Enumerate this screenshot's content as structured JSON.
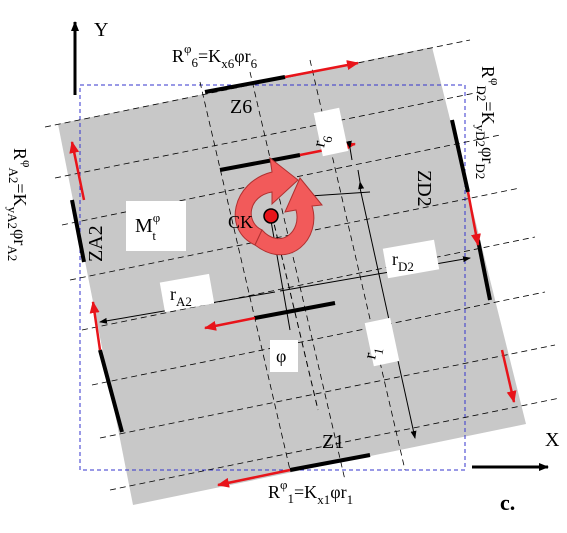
{
  "figure_label": "c.",
  "axes": {
    "x": "X",
    "y": "Y"
  },
  "center_label": "CK",
  "moment": {
    "base": "M",
    "sup": "φ",
    "sub": "t"
  },
  "angle": "φ",
  "walls": {
    "z6": "Z6",
    "z1": "Z1",
    "za2": "ZA2",
    "zd2": "ZD2"
  },
  "distances": {
    "r6": {
      "base": "r",
      "sub": "6"
    },
    "r1": {
      "base": "r",
      "sub": "1"
    },
    "ra2": {
      "base": "r",
      "sub": "A2"
    },
    "rd2": {
      "base": "r",
      "sub": "D2"
    }
  },
  "forces": {
    "top": {
      "R": "R",
      "sup": "φ",
      "idx": "6",
      "eq": "=K",
      "ksub": "x6",
      "tail": "φr",
      "rsub": "6"
    },
    "bottom": {
      "R": "R",
      "sup": "φ",
      "idx": "1",
      "eq": "=K",
      "ksub": "x1",
      "tail": "φr",
      "rsub": "1"
    },
    "right": {
      "R": "R",
      "sup": "φ",
      "idx": "D2",
      "eq": "=K",
      "ksub": "yD2",
      "tail": "φr",
      "rsub": "D2"
    },
    "left": {
      "R": "R",
      "sup": "φ",
      "idx": "A2",
      "eq": "=K",
      "ksub": "yA2",
      "tail": "φr",
      "rsub": "A2"
    }
  },
  "colors": {
    "plate": "#c8c8c8",
    "force": "#e8141a",
    "moment": "#f25a5a",
    "dashed_box": "#3333cc"
  }
}
